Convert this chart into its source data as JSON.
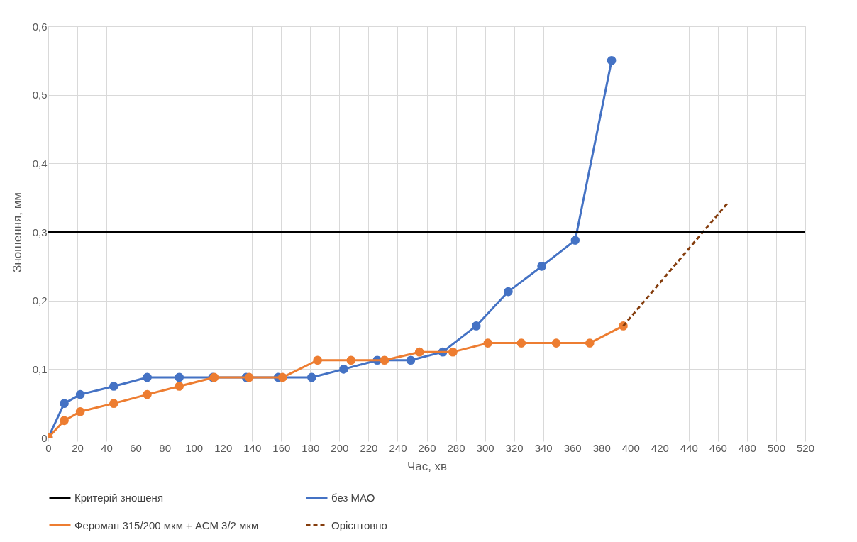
{
  "chart_data": {
    "type": "line",
    "xlabel": "Час, хв",
    "ylabel": "Зношення, мм",
    "xlim": [
      0,
      520
    ],
    "xticks": [
      0,
      20,
      40,
      60,
      80,
      100,
      120,
      140,
      160,
      180,
      200,
      220,
      240,
      260,
      280,
      300,
      320,
      340,
      360,
      380,
      400,
      420,
      440,
      460,
      480,
      500,
      520
    ],
    "ylim": [
      0,
      0.6
    ],
    "yticks": [
      {
        "value": 0,
        "label": "0"
      },
      {
        "value": 0.1,
        "label": "0,1"
      },
      {
        "value": 0.2,
        "label": "0,2"
      },
      {
        "value": 0.3,
        "label": "0,3"
      },
      {
        "value": 0.4,
        "label": "0,4"
      },
      {
        "value": 0.5,
        "label": "0,5"
      },
      {
        "value": 0.6,
        "label": "0,6"
      }
    ],
    "grid": true,
    "legend": "bottom",
    "ref_lines": [
      {
        "axis": "y",
        "value": 0.3,
        "label": "Критерій зношеня",
        "color": "#000000"
      }
    ],
    "series": [
      {
        "name": "без МАО",
        "color": "#4472c4",
        "marker": "circle",
        "line_style": "solid",
        "x": [
          0,
          11,
          22,
          45,
          68,
          90,
          113,
          136,
          158,
          181,
          203,
          226,
          249,
          271,
          294,
          316,
          339,
          362,
          387
        ],
        "values": [
          0,
          0.05,
          0.063,
          0.075,
          0.088,
          0.088,
          0.088,
          0.088,
          0.088,
          0.088,
          0.1,
          0.113,
          0.113,
          0.125,
          0.163,
          0.213,
          0.25,
          0.288,
          0.55
        ]
      },
      {
        "name": "Феромап 315/200 мкм + АСМ 3/2 мкм",
        "color": "#ed7d31",
        "marker": "circle",
        "line_style": "solid",
        "x": [
          0,
          11,
          22,
          45,
          68,
          90,
          114,
          138,
          161,
          185,
          208,
          231,
          255,
          278,
          302,
          325,
          349,
          372,
          395
        ],
        "values": [
          0,
          0.025,
          0.038,
          0.05,
          0.063,
          0.075,
          0.088,
          0.088,
          0.088,
          0.113,
          0.113,
          0.113,
          0.125,
          0.125,
          0.138,
          0.138,
          0.138,
          0.138,
          0.163
        ]
      },
      {
        "name": "Орієнтовно",
        "color": "#843c0c",
        "marker": "none",
        "line_style": "dashed",
        "x": [
          395,
          467
        ],
        "values": [
          0.163,
          0.343
        ]
      }
    ]
  }
}
